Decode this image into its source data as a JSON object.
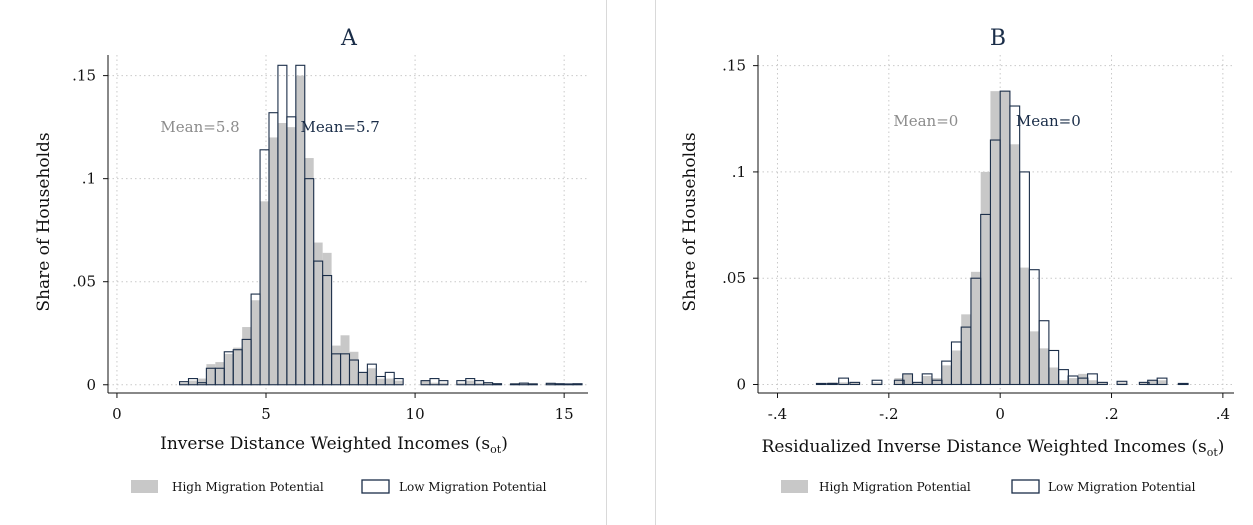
{
  "colors": {
    "high_fill": "#c8c8c8",
    "low_edge": "#1a2d48",
    "grid": "#c9c9c9",
    "title": "#1a2d48",
    "mean_high": "#8c8c8c",
    "mean_low": "#1a2d48"
  },
  "chart_data": [
    {
      "type": "bar",
      "title": "A",
      "xlabel": "Inverse Distance Weighted Incomes (s",
      "xlabel_sub": "ot",
      "xlabel_close": ")",
      "ylabel": "Share of Households",
      "xlim": [
        -0.3,
        15.8
      ],
      "ylim": [
        -0.004,
        0.16
      ],
      "xticks": [
        0,
        5,
        10,
        15
      ],
      "xtick_labels": [
        "0",
        "5",
        "10",
        "15"
      ],
      "yticks": [
        0,
        0.05,
        0.1,
        0.15
      ],
      "ytick_labels": [
        "0",
        ".05",
        ".1",
        ".15"
      ],
      "grid": true,
      "bin_width": 0.3,
      "annotations": {
        "mean_high": {
          "text": "Mean=5.8",
          "x": 2.8,
          "y": 0.125
        },
        "mean_low": {
          "text": "Mean=5.7",
          "x": 7.5,
          "y": 0.125
        }
      },
      "series": [
        {
          "name": "High Migration Potential",
          "style": "filled",
          "bins_start": [
            2.1,
            2.4,
            2.7,
            3.0,
            3.3,
            3.6,
            3.9,
            4.2,
            4.5,
            4.8,
            5.1,
            5.4,
            5.7,
            6.0,
            6.3,
            6.6,
            6.9,
            7.2,
            7.5,
            7.8,
            8.1,
            8.4,
            8.7,
            9.0,
            9.3,
            10.2,
            10.5,
            10.8,
            11.4,
            11.7,
            12.0,
            12.3,
            12.6,
            13.2,
            13.5,
            13.8,
            14.4,
            14.7,
            15.0,
            15.3
          ],
          "values": [
            0.001,
            0.002,
            0.003,
            0.01,
            0.011,
            0.015,
            0.018,
            0.028,
            0.041,
            0.089,
            0.12,
            0.127,
            0.125,
            0.15,
            0.11,
            0.069,
            0.064,
            0.019,
            0.024,
            0.016,
            0.006,
            0.008,
            0.003,
            0.003,
            0.002,
            0.002,
            0.001,
            0.001,
            0.001,
            0.002,
            0.001,
            0.001,
            0.0008,
            0.0008,
            0.0008,
            0.0008,
            0.0006,
            0.0006,
            0.0005,
            0.0005
          ]
        },
        {
          "name": "Low Migration Potential",
          "style": "outline",
          "bins_start": [
            2.1,
            2.4,
            2.7,
            3.0,
            3.3,
            3.6,
            3.9,
            4.2,
            4.5,
            4.8,
            5.1,
            5.4,
            5.7,
            6.0,
            6.3,
            6.6,
            6.9,
            7.2,
            7.5,
            7.8,
            8.1,
            8.4,
            8.7,
            9.0,
            9.3,
            10.2,
            10.5,
            10.8,
            11.4,
            11.7,
            12.0,
            12.3,
            12.6,
            13.2,
            13.5,
            13.8,
            14.4,
            14.7,
            15.0,
            15.3
          ],
          "values": [
            0.0015,
            0.003,
            0.001,
            0.008,
            0.008,
            0.016,
            0.017,
            0.022,
            0.044,
            0.114,
            0.132,
            0.155,
            0.13,
            0.155,
            0.1,
            0.06,
            0.053,
            0.015,
            0.015,
            0.012,
            0.006,
            0.01,
            0.004,
            0.006,
            0.003,
            0.002,
            0.003,
            0.002,
            0.002,
            0.003,
            0.002,
            0.001,
            0.0005,
            0.0004,
            0.0008,
            0.0004,
            0.0007,
            0.0005,
            0.0004,
            0.0005
          ]
        }
      ]
    },
    {
      "type": "bar",
      "title": "B",
      "xlabel": "Residualized Inverse Distance Weighted Incomes (s",
      "xlabel_sub": "ot",
      "xlabel_close": ")",
      "ylabel": "Share of Households",
      "xlim": [
        -0.435,
        0.42
      ],
      "ylim": [
        -0.004,
        0.155
      ],
      "xticks": [
        -0.4,
        -0.2,
        0,
        0.2,
        0.4
      ],
      "xtick_labels": [
        "-.4",
        "-.2",
        "0",
        ".2",
        ".4"
      ],
      "yticks": [
        0,
        0.05,
        0.1,
        0.15
      ],
      "ytick_labels": [
        "0",
        ".05",
        ".1",
        ".15"
      ],
      "grid": true,
      "bin_width": 0.0175,
      "annotations": {
        "mean_high": {
          "text": "Mean=0",
          "x": -0.12,
          "y": 0.124
        },
        "mean_low": {
          "text": "Mean=0",
          "x": 0.1,
          "y": 0.124
        }
      },
      "series": [
        {
          "name": "High Migration Potential",
          "style": "filled",
          "bins_start": [
            -0.33,
            -0.31,
            -0.29,
            -0.27,
            -0.23,
            -0.19,
            -0.175,
            -0.157,
            -0.14,
            -0.122,
            -0.105,
            -0.0875,
            -0.07,
            -0.0525,
            -0.035,
            -0.0175,
            0.0,
            0.0175,
            0.035,
            0.0525,
            0.07,
            0.0875,
            0.105,
            0.122,
            0.14,
            0.157,
            0.175,
            0.21,
            0.25,
            0.265,
            0.282,
            0.32
          ],
          "values": [
            0.0005,
            0.001,
            0.001,
            0.001,
            0.001,
            0.003,
            0.005,
            0.001,
            0.004,
            0.003,
            0.009,
            0.016,
            0.033,
            0.053,
            0.1,
            0.138,
            0.138,
            0.113,
            0.055,
            0.025,
            0.017,
            0.008,
            0.002,
            0.003,
            0.005,
            0.002,
            0.001,
            0.001,
            0.001,
            0.002,
            0.002,
            0.0006
          ]
        },
        {
          "name": "Low Migration Potential",
          "style": "outline",
          "bins_start": [
            -0.33,
            -0.31,
            -0.29,
            -0.27,
            -0.23,
            -0.19,
            -0.175,
            -0.157,
            -0.14,
            -0.122,
            -0.105,
            -0.0875,
            -0.07,
            -0.0525,
            -0.035,
            -0.0175,
            0.0,
            0.0175,
            0.035,
            0.0525,
            0.07,
            0.0875,
            0.105,
            0.122,
            0.14,
            0.157,
            0.175,
            0.21,
            0.25,
            0.265,
            0.282,
            0.32
          ],
          "values": [
            0.0005,
            0.0005,
            0.003,
            0.001,
            0.002,
            0.002,
            0.005,
            0.001,
            0.005,
            0.002,
            0.011,
            0.02,
            0.027,
            0.05,
            0.08,
            0.115,
            0.138,
            0.131,
            0.1,
            0.054,
            0.03,
            0.016,
            0.007,
            0.004,
            0.003,
            0.005,
            0.001,
            0.0015,
            0.001,
            0.002,
            0.003,
            0.0005
          ]
        }
      ]
    }
  ]
}
